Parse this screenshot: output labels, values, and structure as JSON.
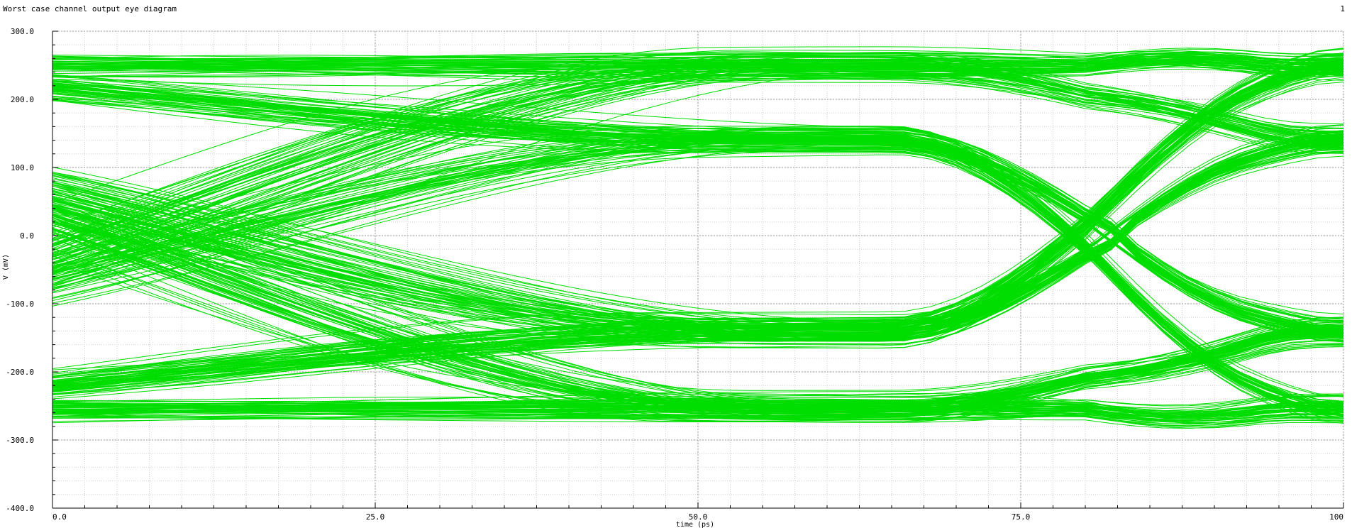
{
  "header": {
    "title": "Worst case channel output eye diagram",
    "page_number": "1"
  },
  "chart_data": {
    "type": "line",
    "title": "Worst case channel output eye diagram",
    "xlabel": "time (ps)",
    "ylabel": "V (mV)",
    "xlim": [
      0,
      100
    ],
    "ylim": [
      -400,
      300
    ],
    "x_ticks": [
      0,
      25,
      50,
      75,
      100
    ],
    "x_tick_labels": [
      "0.0",
      "25.0",
      "50.0",
      "75.0",
      "100"
    ],
    "y_ticks": [
      300,
      200,
      100,
      0,
      -100,
      -200,
      -300,
      -400
    ],
    "y_tick_labels": [
      "300.0",
      "200.0",
      "100.0",
      "0.0",
      "-100.0",
      "-200.0",
      "-300.0",
      "-400.0"
    ],
    "grid": true,
    "trace_color": "#00dd00",
    "trace_count_estimate": 480,
    "description": "Eye diagram with dense green traces; inner eye opening centered near 65 ps spanning roughly -60 mV to 75 mV; upper trace bands near +250 mV and +140 mV, lower bands near -130 mV and -260 mV; crossings near 0 mV around 0 ps and 100 ps."
  }
}
